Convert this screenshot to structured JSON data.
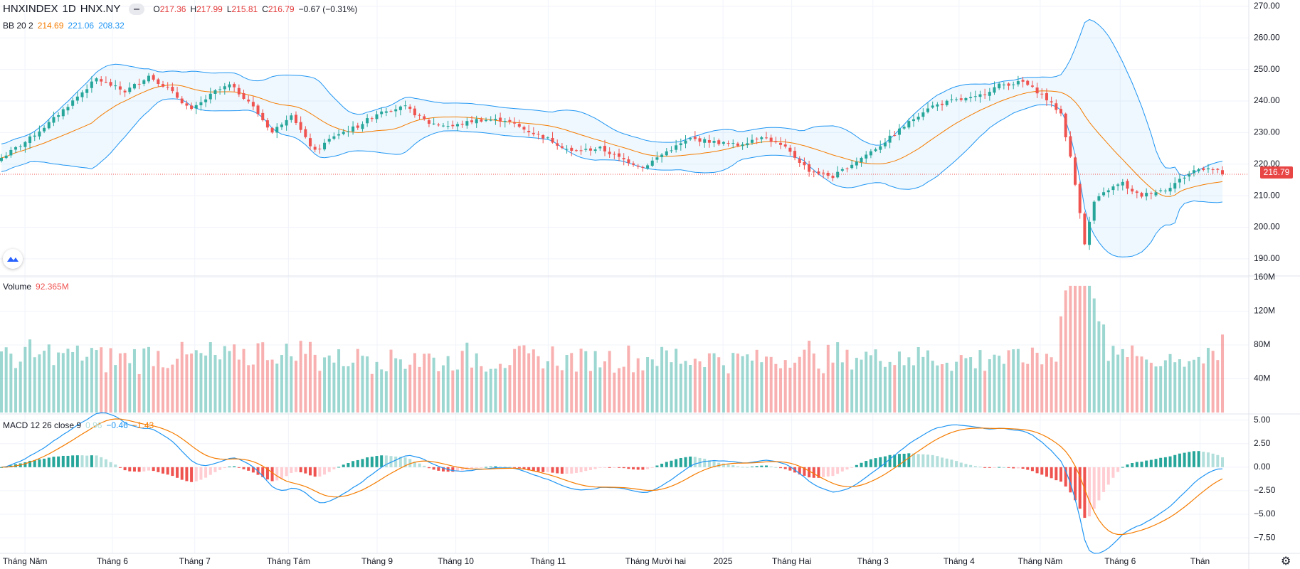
{
  "header": {
    "symbol": "HNXINDEX",
    "interval": "1D",
    "exchange": "HNX.NY",
    "open_label": "O",
    "open": "217.36",
    "high_label": "H",
    "high": "217.99",
    "low_label": "L",
    "low": "215.81",
    "close_label": "C",
    "close": "216.79",
    "change": "−0.67 (−0.31%)"
  },
  "bb": {
    "label": "BB 20 2",
    "basis": "214.69",
    "upper": "221.06",
    "lower": "208.32"
  },
  "volume": {
    "label": "Volume",
    "value": "92.365M"
  },
  "macd": {
    "label": "MACD 12 26 close 9",
    "hist": "0.96",
    "macd": "−0.46",
    "signal": "−1.43"
  },
  "last_price_tag": "216.79",
  "colors": {
    "up": "#26a69a",
    "down": "#ef5350",
    "band": "#2196f3",
    "basis": "#f57c00",
    "price_tag": "#e84545"
  },
  "icons": {
    "logo": "tradingview-logo-icon",
    "settings": "gear-icon",
    "visibility": "eye-icon"
  },
  "chart_data": {
    "type": "candlestick",
    "panes": [
      {
        "name": "price",
        "ylim": [
          185,
          272
        ],
        "ticks": [
          "270.00",
          "260.00",
          "250.00",
          "240.00",
          "230.00",
          "220.00",
          "210.00",
          "200.00",
          "190.00"
        ],
        "tick_values": [
          270,
          260,
          250,
          240,
          230,
          220,
          210,
          200,
          190
        ]
      },
      {
        "name": "volume",
        "ylim": [
          0,
          160
        ],
        "ticks": [
          "160M",
          "120M",
          "80M",
          "40M"
        ],
        "tick_values": [
          160,
          120,
          80,
          40
        ]
      },
      {
        "name": "macd",
        "ylim": [
          -9,
          5.5
        ],
        "ticks": [
          "5.00",
          "2.50",
          "0.00",
          "−2.50",
          "−5.00",
          "−7.50"
        ],
        "tick_values": [
          5,
          2.5,
          0,
          -2.5,
          -5,
          -7.5
        ]
      }
    ],
    "x_labels": [
      {
        "label": "Tháng Năm",
        "pos": 0.02
      },
      {
        "label": "Tháng 6",
        "pos": 0.09
      },
      {
        "label": "Tháng 7",
        "pos": 0.156
      },
      {
        "label": "Tháng Tám",
        "pos": 0.231
      },
      {
        "label": "Tháng 9",
        "pos": 0.302
      },
      {
        "label": "Tháng 10",
        "pos": 0.365
      },
      {
        "label": "Tháng 11",
        "pos": 0.439
      },
      {
        "label": "Tháng Mười hai",
        "pos": 0.525
      },
      {
        "label": "2025",
        "pos": 0.579
      },
      {
        "label": "Tháng Hai",
        "pos": 0.634
      },
      {
        "label": "Tháng 3",
        "pos": 0.699
      },
      {
        "label": "Tháng 4",
        "pos": 0.768
      },
      {
        "label": "Tháng Năm",
        "pos": 0.833
      },
      {
        "label": "Tháng 6",
        "pos": 0.897
      },
      {
        "label": "Thán",
        "pos": 0.961
      }
    ],
    "price_anchors": [
      [
        0,
        222
      ],
      [
        5,
        227
      ],
      [
        10,
        233
      ],
      [
        15,
        240
      ],
      [
        20,
        247
      ],
      [
        26,
        243
      ],
      [
        31,
        248
      ],
      [
        35,
        244
      ],
      [
        40,
        237
      ],
      [
        45,
        243
      ],
      [
        48,
        245
      ],
      [
        52,
        240
      ],
      [
        57,
        230
      ],
      [
        61,
        236
      ],
      [
        64,
        228
      ],
      [
        66,
        224
      ],
      [
        70,
        229
      ],
      [
        75,
        232
      ],
      [
        80,
        237
      ],
      [
        85,
        238
      ],
      [
        90,
        233
      ],
      [
        95,
        232
      ],
      [
        100,
        234
      ],
      [
        106,
        234
      ],
      [
        110,
        231
      ],
      [
        115,
        228
      ],
      [
        120,
        224
      ],
      [
        126,
        225
      ],
      [
        130,
        222
      ],
      [
        135,
        219
      ],
      [
        140,
        224
      ],
      [
        145,
        228
      ],
      [
        150,
        227
      ],
      [
        155,
        226
      ],
      [
        160,
        229
      ],
      [
        165,
        225
      ],
      [
        170,
        218
      ],
      [
        175,
        216
      ],
      [
        180,
        221
      ],
      [
        185,
        226
      ],
      [
        190,
        232
      ],
      [
        195,
        238
      ],
      [
        200,
        240
      ],
      [
        205,
        241
      ],
      [
        210,
        245
      ],
      [
        215,
        246
      ],
      [
        219,
        242
      ],
      [
        223,
        236
      ],
      [
        225,
        222
      ],
      [
        227,
        205
      ],
      [
        228,
        195
      ],
      [
        230,
        208
      ],
      [
        233,
        212
      ],
      [
        236,
        214
      ],
      [
        238,
        211
      ],
      [
        240,
        210
      ],
      [
        242,
        211
      ],
      [
        245,
        212
      ],
      [
        248,
        215
      ],
      [
        251,
        218
      ],
      [
        254,
        219
      ],
      [
        257,
        217
      ]
    ],
    "last_close": 216.79,
    "bb_current": {
      "upper": 221.06,
      "basis": 214.69,
      "lower": 208.32
    },
    "volume_last": 92.365,
    "macd_current": {
      "hist": 0.96,
      "macd": -0.46,
      "signal": -1.43
    }
  }
}
